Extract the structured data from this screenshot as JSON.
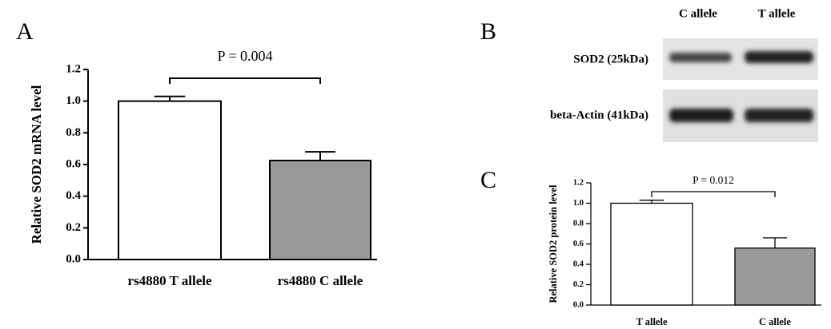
{
  "chart_data": [
    {
      "type": "bar",
      "panel": "A",
      "annotation": "P = 0.004",
      "ylabel": "Relative SOD2 mRNA level",
      "categories": [
        "rs4880 T allele",
        "rs4880 C allele"
      ],
      "values": [
        1.0,
        0.625
      ],
      "errors": [
        0.03,
        0.055
      ],
      "colors": [
        "#ffffff",
        "#999999"
      ],
      "ylim": [
        0,
        1.2
      ],
      "yticks": [
        {
          "value": 0,
          "label": "0.0"
        },
        0.2,
        0.4,
        0.6,
        0.8,
        {
          "value": 1,
          "label": "1.0"
        },
        1.2
      ]
    },
    {
      "type": "bar",
      "panel": "C",
      "annotation": "P = 0.012",
      "ylabel": "Relative SOD2 protein level",
      "categories": [
        "T allele",
        "C allele"
      ],
      "values": [
        1.0,
        0.56
      ],
      "errors": [
        0.03,
        0.1
      ],
      "colors": [
        "#ffffff",
        "#999999"
      ],
      "ylim": [
        0,
        1.2
      ],
      "yticks": [
        {
          "value": 0,
          "label": "0.0"
        },
        0.2,
        0.4,
        0.6,
        0.8,
        {
          "value": 1,
          "label": "1.0"
        },
        1.2
      ]
    }
  ],
  "blot": {
    "panel": "B",
    "columns": [
      "C allele",
      "T allele"
    ],
    "rows": [
      "SOD2 (25kDa)",
      "beta-Actin (41kDa)"
    ]
  }
}
